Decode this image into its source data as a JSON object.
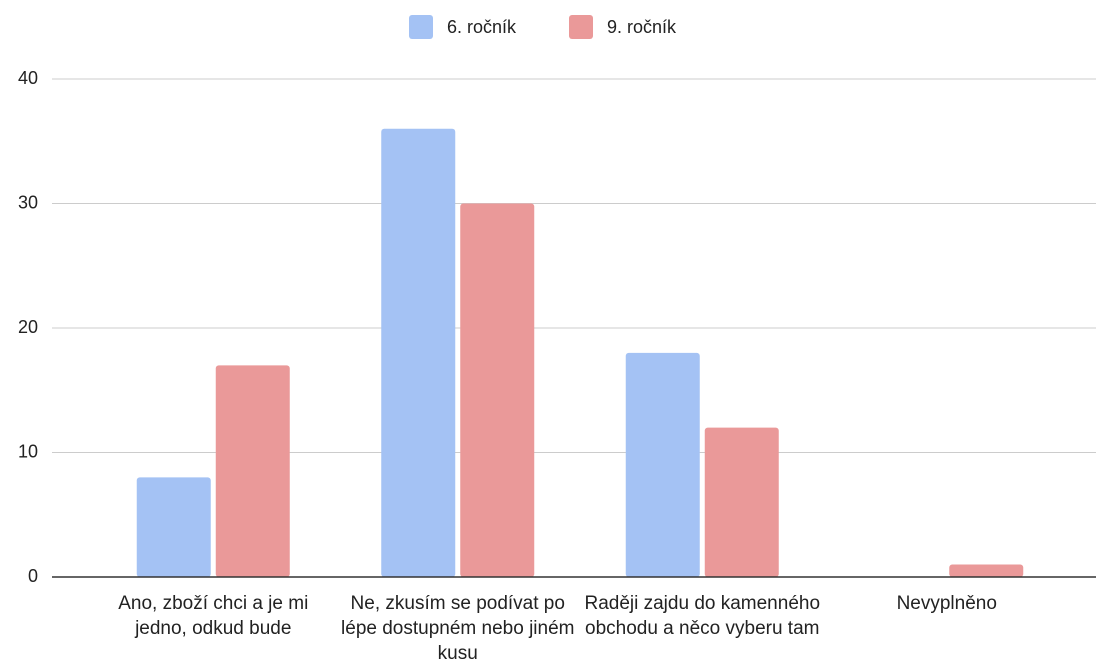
{
  "chart_data": {
    "type": "bar",
    "categories": [
      "Ano, zboží chci a je mi jedno, odkud bude",
      "Ne, zkusím se podívat po lépe dostupném nebo jiném kusu",
      "Raději zajdu do kamenného obchodu a něco vyberu tam",
      "Nevyplněno"
    ],
    "series": [
      {
        "name": "6. ročník",
        "color": "#a4c2f4",
        "values": [
          8,
          36,
          18,
          0
        ]
      },
      {
        "name": "9. ročník",
        "color": "#ea9999",
        "values": [
          17,
          30,
          12,
          1
        ]
      }
    ],
    "ylim": [
      0,
      40
    ],
    "yticks": [
      0,
      10,
      20,
      30,
      40
    ],
    "grid": true,
    "legend": "top"
  }
}
